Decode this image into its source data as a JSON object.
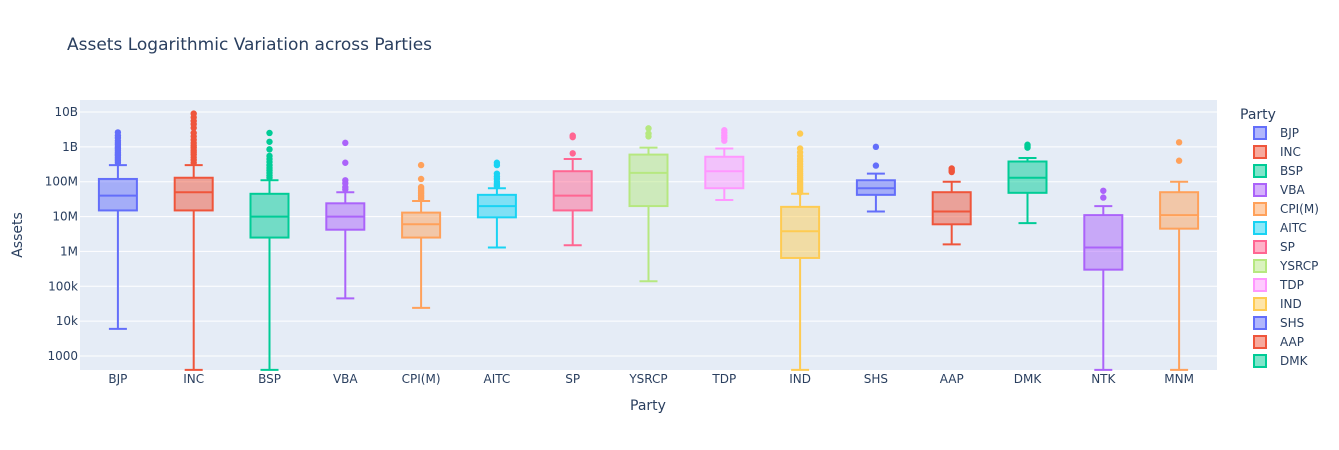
{
  "chart_data": {
    "type": "box",
    "title": "Assets Logarithmic Variation across Parties",
    "xlabel": "Party",
    "ylabel": "Assets",
    "yscale": "log",
    "ylim": [
      400,
      16000000000
    ],
    "yticks": [
      {
        "value": 1000,
        "label": "1000"
      },
      {
        "value": 10000,
        "label": "10k"
      },
      {
        "value": 100000,
        "label": "100k"
      },
      {
        "value": 1000000,
        "label": "1M"
      },
      {
        "value": 10000000,
        "label": "10M"
      },
      {
        "value": 100000000,
        "label": "100M"
      },
      {
        "value": 1000000000,
        "label": "1B"
      },
      {
        "value": 10000000000,
        "label": "10B"
      }
    ],
    "legend_title": "Party",
    "legend_position": "right",
    "grid": true,
    "series": [
      {
        "name": "BJP",
        "color": "#636efa",
        "min": 6000,
        "q1": 15000000,
        "median": 40000000,
        "q3": 120000000,
        "max": 300000000,
        "outliers": [
          350000000,
          400000000,
          450000000,
          500000000,
          560000000,
          620000000,
          700000000,
          800000000,
          900000000,
          1000000000,
          1150000000,
          1300000000,
          1500000000,
          1800000000,
          2100000000,
          2600000000
        ]
      },
      {
        "name": "INC",
        "color": "#EF553B",
        "min": 400,
        "q1": 15000000,
        "median": 50000000,
        "q3": 130000000,
        "max": 300000000,
        "outliers": [
          350000000,
          420000000,
          500000000,
          600000000,
          700000000,
          800000000,
          950000000,
          1100000000,
          1300000000,
          1600000000,
          2000000000,
          2500000000,
          3500000000,
          4500000000,
          5500000000,
          7000000000,
          9000000000
        ]
      },
      {
        "name": "BSP",
        "color": "#00cc96",
        "min": 400,
        "q1": 2500000,
        "median": 10000000,
        "q3": 45000000,
        "max": 110000000,
        "outliers": [
          130000000,
          150000000,
          180000000,
          210000000,
          250000000,
          300000000,
          370000000,
          450000000,
          550000000,
          850000000,
          1400000000,
          2500000000
        ]
      },
      {
        "name": "VBA",
        "color": "#ab63fa",
        "min": 45000,
        "q1": 4200000,
        "median": 10000000,
        "q3": 24000000,
        "max": 50000000,
        "outliers": [
          60000000,
          70000000,
          90000000,
          110000000,
          350000000,
          1300000000
        ]
      },
      {
        "name": "CPI(M)",
        "color": "#FFA15A",
        "min": 24000,
        "q1": 2500000,
        "median": 6000000,
        "q3": 13000000,
        "max": 28000000,
        "outliers": [
          32000000,
          36000000,
          40000000,
          45000000,
          50000000,
          55000000,
          62000000,
          70000000,
          120000000,
          300000000
        ]
      },
      {
        "name": "AITC",
        "color": "#19d3f3",
        "min": 1300000,
        "q1": 9500000,
        "median": 20000000,
        "q3": 42000000,
        "max": 65000000,
        "outliers": [
          75000000,
          85000000,
          100000000,
          120000000,
          140000000,
          170000000,
          300000000,
          350000000
        ]
      },
      {
        "name": "SP",
        "color": "#FF6692",
        "min": 1500000,
        "q1": 15000000,
        "median": 40000000,
        "q3": 200000000,
        "max": 450000000,
        "outliers": [
          650000000,
          1900000000,
          2100000000
        ]
      },
      {
        "name": "YSRCP",
        "color": "#B6E880",
        "min": 140000,
        "q1": 20000000,
        "median": 180000000,
        "q3": 600000000,
        "max": 950000000,
        "outliers": [
          2000000000,
          2400000000,
          3400000000
        ]
      },
      {
        "name": "TDP",
        "color": "#FF97FF",
        "min": 30000000,
        "q1": 65000000,
        "median": 200000000,
        "q3": 520000000,
        "max": 900000000,
        "outliers": [
          1500000000,
          1800000000,
          2100000000,
          2500000000,
          3000000000
        ]
      },
      {
        "name": "IND",
        "color": "#FECB52",
        "min": 400,
        "q1": 650000,
        "median": 3800000,
        "q3": 19000000,
        "max": 45000000,
        "outliers": [
          50000000,
          56000000,
          63000000,
          70000000,
          80000000,
          90000000,
          100000000,
          115000000,
          130000000,
          150000000,
          170000000,
          200000000,
          230000000,
          270000000,
          320000000,
          380000000,
          450000000,
          550000000,
          700000000,
          900000000,
          2400000000
        ]
      },
      {
        "name": "SHS",
        "color": "#636efa",
        "min": 14000000,
        "q1": 42000000,
        "median": 65000000,
        "q3": 110000000,
        "max": 170000000,
        "outliers": [
          290000000,
          1000000000
        ]
      },
      {
        "name": "AAP",
        "color": "#EF553B",
        "min": 1600000,
        "q1": 6000000,
        "median": 14000000,
        "q3": 50000000,
        "max": 100000000,
        "outliers": [
          190000000,
          210000000,
          240000000
        ]
      },
      {
        "name": "DMK",
        "color": "#00cc96",
        "min": 6500000,
        "q1": 48000000,
        "median": 130000000,
        "q3": 380000000,
        "max": 480000000,
        "outliers": [
          950000000,
          1050000000,
          1150000000
        ]
      },
      {
        "name": "NTK",
        "color": "#ab63fa",
        "min": 400,
        "q1": 300000,
        "median": 1300000,
        "q3": 11000000,
        "max": 20000000,
        "outliers": [
          35000000,
          55000000
        ]
      },
      {
        "name": "MNM",
        "color": "#FFA15A",
        "min": 400,
        "q1": 4500000,
        "median": 11000000,
        "q3": 50000000,
        "max": 100000000,
        "outliers": [
          400000000,
          1350000000
        ]
      }
    ]
  }
}
